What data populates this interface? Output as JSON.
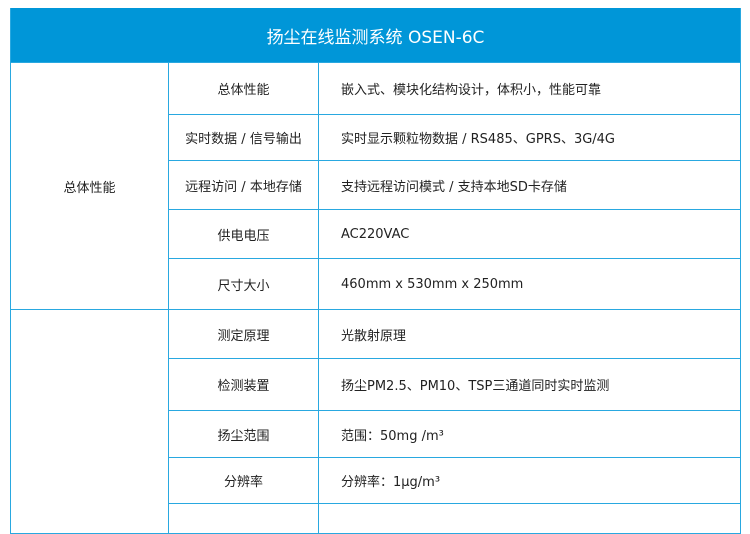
{
  "title": "扬尘在线监测系统 OSEN-6C",
  "groups": [
    {
      "label": "总体性能",
      "rows": [
        {
          "key": "总体性能",
          "value": "嵌入式、模块化结构设计，体积小，性能可靠"
        },
        {
          "key": "实时数据 / 信号输出",
          "value": "实时显示颗粒物数据 / RS485、GPRS、3G/4G"
        },
        {
          "key": "远程访问 / 本地存储",
          "value": "支持远程访问模式 / 支持本地SD卡存储"
        },
        {
          "key": "供电电压",
          "value": "AC220VAC"
        },
        {
          "key": "尺寸大小",
          "value": "460mm x 530mm x 250mm"
        }
      ]
    },
    {
      "label": "",
      "rows": [
        {
          "key": "测定原理",
          "value": "光散射原理"
        },
        {
          "key": "检测装置",
          "value": "扬尘PM2.5、PM10、TSP三通道同时实时监测"
        },
        {
          "key": "扬尘范围",
          "value": "范围：50mg /m³"
        },
        {
          "key": "分辨率",
          "value": "分辨率：1μg/m³"
        }
      ]
    }
  ],
  "colors": {
    "header": "#0096d8",
    "border": "#29a8e0"
  }
}
